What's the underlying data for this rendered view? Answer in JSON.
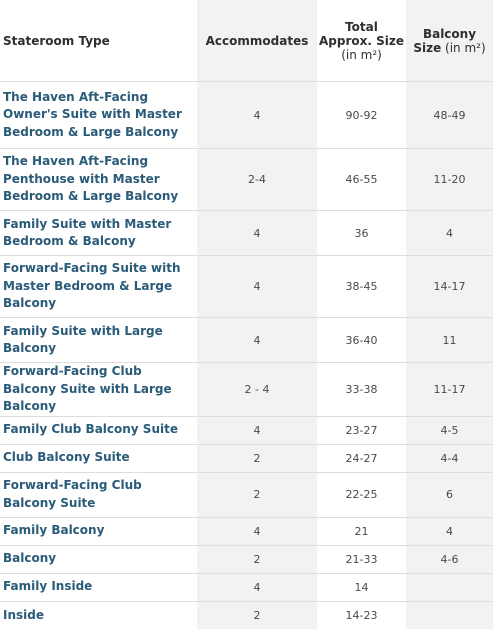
{
  "table": {
    "headers": {
      "stateroom": "Stateroom Type",
      "accommodates": "Accommodates",
      "total_bold": "Total Approx. Size",
      "total_light": " (in ",
      "total_unit": "m²)",
      "balcony_bold": "Balcony Size",
      "balcony_light": " (in ",
      "balcony_unit": "m²)"
    },
    "rows": [
      {
        "type": "The Haven Aft-Facing Owner's Suite with Master Bedroom & Large Balcony",
        "accommodates": "4",
        "total": "90-92",
        "balcony": "48-49"
      },
      {
        "type": "The Haven Aft-Facing Penthouse with Master Bedroom & Large Balcony",
        "accommodates": "2-4",
        "total": "46-55",
        "balcony": "11-20"
      },
      {
        "type": "Family Suite with Master Bedroom & Balcony",
        "accommodates": "4",
        "total": "36",
        "balcony": "4"
      },
      {
        "type": "Forward-Facing Suite with Master Bedroom & Large Balcony",
        "accommodates": "4",
        "total": "38-45",
        "balcony": "14-17"
      },
      {
        "type": "Family Suite with Large Balcony",
        "accommodates": "4",
        "total": "36-40",
        "balcony": "11"
      },
      {
        "type": "Forward-Facing Club Balcony Suite with Large Balcony",
        "accommodates": "2 - 4",
        "total": "33-38",
        "balcony": "11-17"
      },
      {
        "type": "Family Club Balcony Suite",
        "accommodates": "4",
        "total": "23-27",
        "balcony": "4-5"
      },
      {
        "type": "Club Balcony Suite",
        "accommodates": "2",
        "total": "24-27",
        "balcony": "4-4"
      },
      {
        "type": "Forward-Facing Club Balcony Suite",
        "accommodates": "2",
        "total": "22-25",
        "balcony": "6"
      },
      {
        "type": "Family Balcony",
        "accommodates": "4",
        "total": "21",
        "balcony": "4"
      },
      {
        "type": "Balcony",
        "accommodates": "2",
        "total": "21-33",
        "balcony": "4-6"
      },
      {
        "type": "Family Inside",
        "accommodates": "4",
        "total": "14",
        "balcony": ""
      },
      {
        "type": "Inside",
        "accommodates": "2",
        "total": "14-23",
        "balcony": ""
      }
    ]
  }
}
